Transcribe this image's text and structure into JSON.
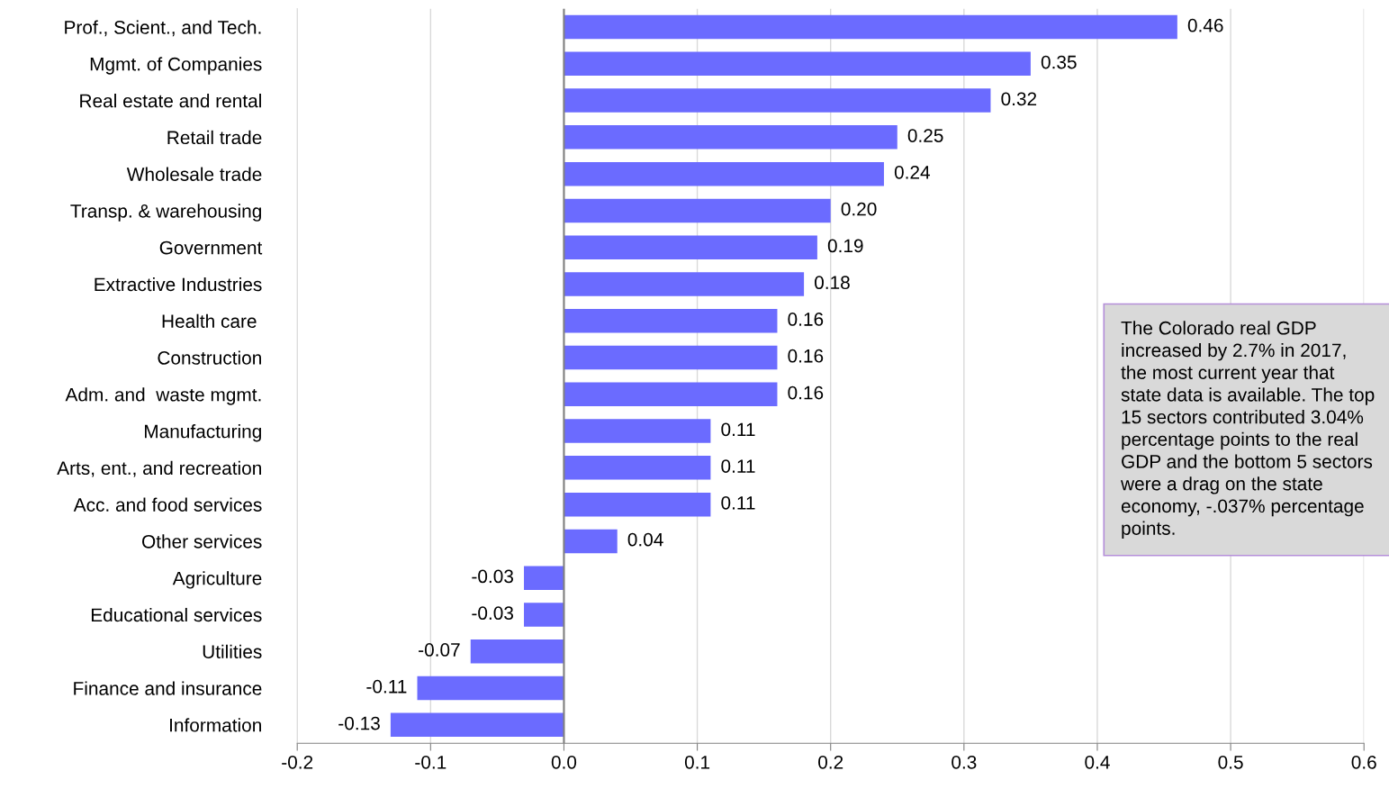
{
  "chart_data": {
    "type": "bar",
    "orientation": "horizontal",
    "categories": [
      "Prof., Scient., and Tech.",
      "Mgmt. of Companies",
      "Real estate and rental",
      "Retail trade",
      "Wholesale trade",
      "Transp. & warehousing",
      "Government",
      "Extractive Industries",
      "Health care ",
      "Construction",
      "Adm. and  waste mgmt.",
      "Manufacturing",
      "Arts, ent., and recreation",
      "Acc. and food services",
      "Other services",
      "Agriculture",
      "Educational services",
      "Utilities",
      "Finance and insurance",
      "Information"
    ],
    "values": [
      0.46,
      0.35,
      0.32,
      0.25,
      0.24,
      0.2,
      0.19,
      0.18,
      0.16,
      0.16,
      0.16,
      0.11,
      0.11,
      0.11,
      0.04,
      -0.03,
      -0.03,
      -0.07,
      -0.11,
      -0.13
    ],
    "value_labels": [
      "0.46",
      "0.35",
      "0.32",
      "0.25",
      "0.24",
      "0.20",
      "0.19",
      "0.18",
      "0.16",
      "0.16",
      "0.16",
      "0.11",
      "0.11",
      "0.11",
      "0.04",
      "-0.03",
      "-0.03",
      "-0.07",
      "-0.11",
      "-0.13"
    ],
    "color": "#6b6bff",
    "xlim": [
      -0.2,
      0.6
    ],
    "xticks": [
      {
        "value": -0.2,
        "label": "-0.2"
      },
      {
        "value": -0.1,
        "label": "-0.1"
      },
      {
        "value": 0,
        "label": "0.0"
      },
      {
        "value": 0.1,
        "label": "0.1"
      },
      {
        "value": 0.2,
        "label": "0.2"
      },
      {
        "value": 0.3,
        "label": "0.3"
      },
      {
        "value": 0.4,
        "label": "0.4"
      },
      {
        "value": 0.5,
        "label": "0.5"
      },
      {
        "value": 0.6,
        "label": "0.6"
      }
    ],
    "grid": "x",
    "ref_lines": [
      {
        "axis": "x",
        "value": 0,
        "color": "#808080"
      }
    ],
    "annotations": [
      "The Colorado real GDP\nincreased by 2.7% in 2017,\nthe most current year that\nstate data is available. The top\n15 sectors contributed 3.04%\npercentage points to the real\nGDP and the bottom 5 sectors\nwere a drag on the state\neconomy, -.037% percentage\npoints."
    ]
  }
}
